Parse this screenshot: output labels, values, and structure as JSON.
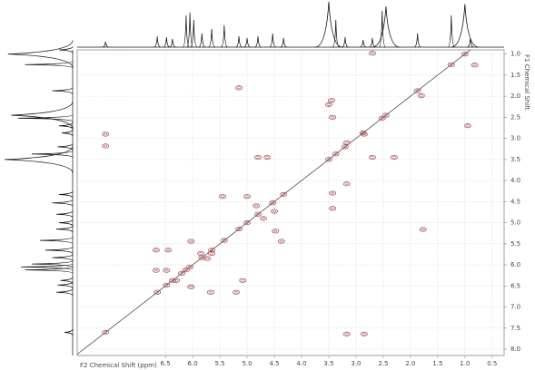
{
  "chart_data": {
    "type": "nmr-cosy",
    "x_label": "F2 Chemical Shift (ppm)",
    "y_label": "F1 Chemical Shift",
    "xlim": [
      8.12,
      0.28
    ],
    "ylim": [
      0.9,
      8.15
    ],
    "xticks": [
      6.5,
      {
        "value": 6.0,
        "label": "6.0"
      },
      5.5,
      {
        "value": 5.0,
        "label": "5.0"
      },
      4.5,
      {
        "value": 4.0,
        "label": "4.0"
      },
      3.5,
      {
        "value": 3.0,
        "label": "3.0"
      },
      2.5,
      {
        "value": 2.0,
        "label": "2.0"
      },
      1.5,
      {
        "value": 1.0,
        "label": "1.0"
      },
      0.5
    ],
    "yticks": [
      {
        "value": 1.0,
        "label": "1.0"
      },
      1.5,
      {
        "value": 2.0,
        "label": "2.0"
      },
      2.5,
      {
        "value": 3.0,
        "label": "3.0"
      },
      3.5,
      {
        "value": 4.0,
        "label": "4.0"
      },
      4.5,
      {
        "value": 5.0,
        "label": "5.0"
      },
      5.5,
      {
        "value": 6.0,
        "label": "6.0"
      },
      6.5,
      {
        "value": 7.0,
        "label": "7.0"
      },
      7.5,
      {
        "value": 8.0,
        "label": "8.0"
      }
    ],
    "grid": true,
    "contour_color": "#a3434b",
    "cross_peaks": {
      "x": [
        7.6,
        6.65,
        6.48,
        6.37,
        6.12,
        6.05,
        5.83,
        5.65,
        5.42,
        5.15,
        5.0,
        4.8,
        4.53,
        4.33,
        3.5,
        3.37,
        3.2,
        2.87,
        2.52,
        2.45,
        1.87,
        1.25,
        1.0,
        7.6,
        7.6,
        5.15,
        3.43,
        3.5,
        0.95,
        0.82,
        2.7,
        2.85,
        5.45,
        5.0,
        4.5,
        4.48,
        4.37,
        6.45,
        6.67,
        6.03,
        5.73,
        6.67,
        6.48,
        6.3,
        6.03,
        5.67,
        5.2,
        5.08,
        4.83,
        4.7,
        3.17,
        3.17,
        2.7,
        2.3,
        1.77,
        3.17,
        2.85,
        4.63,
        4.8,
        3.43,
        3.43,
        3.45,
        5.65,
        5.85,
        6.2,
        1.8
      ],
      "y": [
        7.6,
        6.65,
        6.48,
        6.37,
        6.12,
        6.05,
        5.83,
        5.65,
        5.42,
        5.15,
        5.0,
        4.8,
        4.53,
        4.33,
        3.5,
        3.37,
        3.2,
        2.87,
        2.52,
        2.45,
        1.87,
        1.25,
        1.0,
        2.9,
        3.18,
        1.8,
        2.5,
        2.2,
        2.7,
        1.26,
        0.98,
        2.9,
        4.38,
        4.38,
        4.73,
        5.2,
        5.44,
        5.65,
        5.65,
        5.44,
        5.85,
        6.13,
        6.13,
        6.37,
        6.52,
        6.65,
        6.65,
        6.37,
        4.6,
        4.9,
        3.1,
        4.08,
        3.45,
        3.45,
        5.16,
        7.64,
        7.64,
        3.45,
        3.45,
        4.66,
        4.3,
        2.1,
        5.73,
        5.73,
        6.2,
        1.99
      ]
    },
    "projection": {
      "ppm": [
        7.6,
        6.65,
        6.48,
        6.37,
        6.12,
        6.05,
        5.98,
        5.83,
        5.65,
        5.42,
        5.15,
        5.0,
        4.8,
        4.53,
        4.33,
        3.5,
        3.37,
        3.2,
        2.87,
        2.7,
        2.52,
        2.45,
        1.87,
        1.25,
        1.0,
        0.9
      ],
      "height": [
        12,
        24,
        22,
        18,
        70,
        76,
        60,
        30,
        40,
        48,
        24,
        20,
        24,
        30,
        20,
        100,
        60,
        22,
        16,
        20,
        80,
        90,
        30,
        70,
        95,
        20
      ]
    }
  }
}
